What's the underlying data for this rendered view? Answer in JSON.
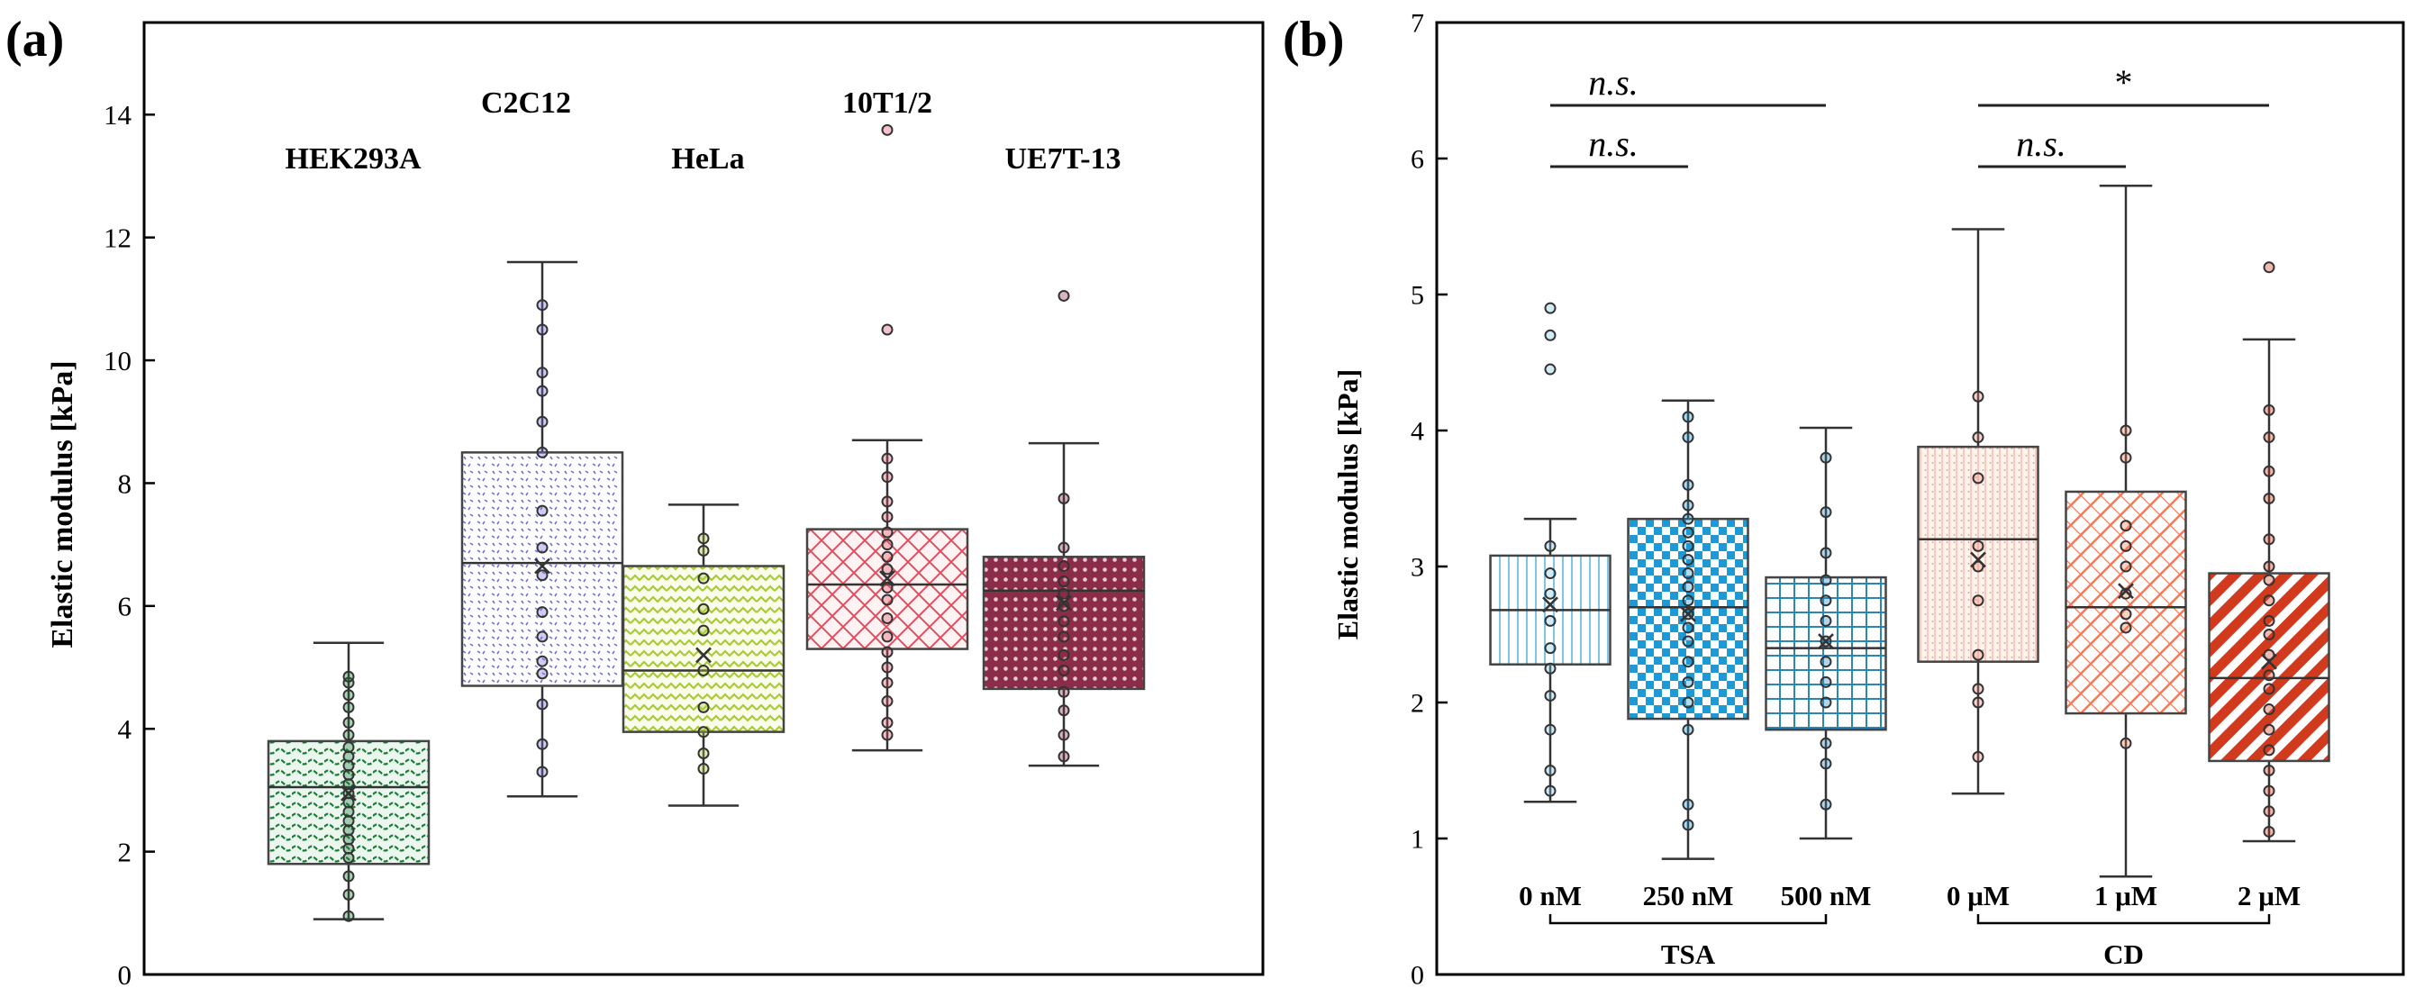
{
  "chart_data": [
    {
      "type": "box",
      "panel_label": "(a)",
      "ylabel": "Elastic modulus [kPa]",
      "ylim": [
        0,
        15.5
      ],
      "yticks": [
        0,
        2,
        4,
        6,
        8,
        10,
        12,
        14
      ],
      "ytick_labels": [
        "0",
        "2",
        "4",
        "6",
        "8",
        "10",
        "12",
        "14"
      ],
      "grid": false,
      "series": [
        {
          "label": "HEK293A",
          "color": "#1f7a3a",
          "pattern": "waves-green",
          "whisker_low": 0.9,
          "q1": 1.8,
          "median": 3.05,
          "q3": 3.8,
          "whisker_high": 5.4,
          "mean": 2.95,
          "points": [
            0.95,
            1.3,
            1.6,
            1.9,
            2.05,
            2.2,
            2.35,
            2.5,
            2.65,
            2.8,
            2.95,
            3.1,
            3.25,
            3.4,
            3.55,
            3.7,
            3.9,
            4.1,
            4.35,
            4.55,
            4.75,
            4.85
          ]
        },
        {
          "label": "C2C12",
          "color": "#6f6fd8",
          "pattern": "dots-blue",
          "whisker_low": 2.9,
          "q1": 4.7,
          "median": 6.7,
          "q3": 8.5,
          "whisker_high": 11.6,
          "mean": 6.65,
          "points": [
            3.3,
            3.75,
            4.4,
            4.9,
            5.1,
            5.5,
            5.9,
            6.5,
            6.95,
            7.55,
            8.5,
            9.0,
            9.5,
            9.8,
            10.5,
            10.9
          ]
        },
        {
          "label": "HeLa",
          "color": "#a8c93a",
          "pattern": "zigzag-lime",
          "whisker_low": 2.75,
          "q1": 3.95,
          "median": 4.95,
          "q3": 6.65,
          "whisker_high": 7.65,
          "mean": 5.2,
          "points": [
            3.35,
            3.6,
            3.95,
            4.35,
            4.95,
            5.6,
            5.95,
            6.45,
            6.9,
            7.1
          ]
        },
        {
          "label": "10T1/2",
          "color": "#e05060",
          "pattern": "lattice-red",
          "whisker_low": 3.65,
          "q1": 5.3,
          "median": 6.35,
          "q3": 7.25,
          "whisker_high": 8.7,
          "mean": 6.45,
          "points": [
            3.9,
            4.1,
            4.45,
            4.75,
            5.0,
            5.25,
            5.5,
            5.8,
            6.1,
            6.3,
            6.6,
            6.8,
            7.0,
            7.2,
            7.45,
            7.7,
            8.1,
            8.4,
            10.5,
            13.75
          ]
        },
        {
          "label": "UE7T-13",
          "color": "#8b2c48",
          "pattern": "grid-maroon",
          "whisker_low": 3.4,
          "q1": 4.65,
          "median": 6.25,
          "q3": 6.8,
          "whisker_high": 8.65,
          "mean": 6.05,
          "points": [
            3.55,
            3.9,
            4.3,
            4.6,
            4.95,
            5.2,
            5.5,
            5.75,
            6.0,
            6.2,
            6.4,
            6.65,
            6.95,
            7.75,
            11.05
          ]
        }
      ]
    },
    {
      "type": "box",
      "panel_label": "(b)",
      "ylabel": "Elastic modulus [kPa]",
      "ylim": [
        0,
        7
      ],
      "yticks": [
        0,
        1,
        2,
        3,
        4,
        5,
        6,
        7
      ],
      "ytick_labels": [
        "0",
        "1",
        "2",
        "3",
        "4",
        "5",
        "6",
        "7"
      ],
      "grid": false,
      "groups": [
        {
          "label": "TSA",
          "members": [
            0,
            1,
            2
          ]
        },
        {
          "label": "CD",
          "members": [
            3,
            4,
            5
          ]
        }
      ],
      "significance": [
        {
          "text": "n.s.",
          "from": 0,
          "to": 2
        },
        {
          "text": "n.s.",
          "from": 0,
          "to": 1
        },
        {
          "text": "*",
          "from": 3,
          "to": 5
        },
        {
          "text": "n.s.",
          "from": 3,
          "to": 4
        }
      ],
      "series": [
        {
          "label": "0 nM",
          "color": "#7cc6e8",
          "pattern": "vlines-lightblue",
          "whisker_low": 1.27,
          "q1": 2.28,
          "median": 2.68,
          "q3": 3.08,
          "whisker_high": 3.35,
          "mean": 2.72,
          "points": [
            1.35,
            1.5,
            1.8,
            2.05,
            2.25,
            2.4,
            2.6,
            2.8,
            2.95,
            3.15,
            4.45,
            4.7,
            4.9
          ]
        },
        {
          "label": "250 nM",
          "color": "#1d9ad6",
          "pattern": "checker-blue",
          "whisker_low": 0.85,
          "q1": 1.88,
          "median": 2.7,
          "q3": 3.35,
          "whisker_high": 4.22,
          "mean": 2.65,
          "points": [
            1.1,
            1.25,
            1.8,
            2.0,
            2.15,
            2.3,
            2.45,
            2.55,
            2.65,
            2.75,
            2.85,
            2.95,
            3.05,
            3.15,
            3.25,
            3.35,
            3.45,
            3.6,
            3.95,
            4.1
          ]
        },
        {
          "label": "500 nM",
          "color": "#2a86b8",
          "pattern": "grid-blue",
          "whisker_low": 1.0,
          "q1": 1.8,
          "median": 2.4,
          "q3": 2.92,
          "whisker_high": 4.02,
          "mean": 2.45,
          "points": [
            1.25,
            1.55,
            1.7,
            2.0,
            2.15,
            2.3,
            2.45,
            2.6,
            2.75,
            2.9,
            3.1,
            3.4,
            3.8
          ]
        },
        {
          "label": "0 μM",
          "color": "#f08a7a",
          "pattern": "fine-salmon",
          "whisker_low": 1.33,
          "q1": 2.3,
          "median": 3.2,
          "q3": 3.88,
          "whisker_high": 5.48,
          "mean": 3.05,
          "points": [
            1.6,
            2.0,
            2.1,
            2.35,
            2.75,
            3.0,
            3.15,
            3.65,
            3.95,
            4.25
          ]
        },
        {
          "label": "1 μM",
          "color": "#f07a5a",
          "pattern": "lattice-orange",
          "whisker_low": 0.72,
          "q1": 1.92,
          "median": 2.7,
          "q3": 3.55,
          "whisker_high": 5.8,
          "mean": 2.82,
          "points": [
            1.7,
            2.55,
            2.65,
            2.8,
            3.0,
            3.15,
            3.3,
            3.8,
            4.0
          ]
        },
        {
          "label": "2 μM",
          "color": "#d23a1e",
          "pattern": "stripes-red",
          "whisker_low": 0.98,
          "q1": 1.57,
          "median": 2.18,
          "q3": 2.95,
          "whisker_high": 4.67,
          "mean": 2.3,
          "points": [
            1.05,
            1.2,
            1.35,
            1.5,
            1.65,
            1.8,
            1.95,
            2.1,
            2.2,
            2.35,
            2.5,
            2.6,
            2.75,
            2.9,
            3.0,
            3.2,
            3.5,
            3.7,
            3.95,
            4.15,
            5.2
          ]
        }
      ]
    }
  ]
}
